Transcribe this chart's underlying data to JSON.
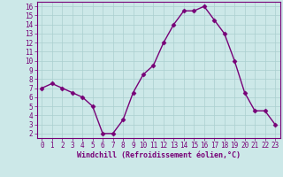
{
  "x": [
    0,
    1,
    2,
    3,
    4,
    5,
    6,
    7,
    8,
    9,
    10,
    11,
    12,
    13,
    14,
    15,
    16,
    17,
    18,
    19,
    20,
    21,
    22,
    23
  ],
  "y": [
    7.0,
    7.5,
    7.0,
    6.5,
    6.0,
    5.0,
    2.0,
    2.0,
    3.5,
    6.5,
    8.5,
    9.5,
    12.0,
    14.0,
    15.5,
    15.5,
    16.0,
    14.5,
    13.0,
    10.0,
    6.5,
    4.5,
    4.5,
    3.0
  ],
  "line_color": "#770077",
  "marker": "D",
  "marker_size": 2.5,
  "xlabel": "Windchill (Refroidissement éolien,°C)",
  "xlim": [
    -0.5,
    23.5
  ],
  "ylim": [
    1.5,
    16.5
  ],
  "yticks": [
    2,
    3,
    4,
    5,
    6,
    7,
    8,
    9,
    10,
    11,
    12,
    13,
    14,
    15,
    16
  ],
  "xticks": [
    0,
    1,
    2,
    3,
    4,
    5,
    6,
    7,
    8,
    9,
    10,
    11,
    12,
    13,
    14,
    15,
    16,
    17,
    18,
    19,
    20,
    21,
    22,
    23
  ],
  "grid_color": "#aacfcf",
  "bg_color": "#cce8e8",
  "tick_label_color": "#770077",
  "xlabel_color": "#770077",
  "spine_color": "#770077",
  "tick_fontsize": 5.5,
  "xlabel_fontsize": 6.0,
  "linewidth": 1.0
}
